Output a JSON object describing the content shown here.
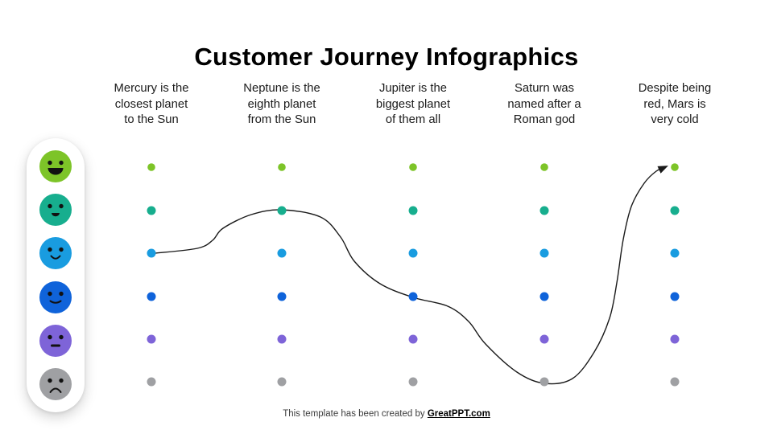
{
  "title": "Customer Journey Infographics",
  "columns": [
    {
      "lines": [
        "Mercury is the",
        "closest planet",
        "to the Sun"
      ]
    },
    {
      "lines": [
        "Neptune is the",
        "eighth planet",
        "from the Sun"
      ]
    },
    {
      "lines": [
        "Jupiter is the",
        "biggest planet",
        "of them all"
      ]
    },
    {
      "lines": [
        "Saturn was",
        "named after a",
        "Roman god"
      ]
    },
    {
      "lines": [
        "Despite being",
        "red, Mars is",
        "very cold"
      ]
    }
  ],
  "moods": [
    {
      "name": "very-happy",
      "mouth": "big-smile",
      "color": "#7DC428"
    },
    {
      "name": "happy",
      "mouth": "small-smile",
      "color": "#17AE8E"
    },
    {
      "name": "content",
      "mouth": "open-smile",
      "color": "#199CE0"
    },
    {
      "name": "okay",
      "mouth": "soft-smile",
      "color": "#0F63DA"
    },
    {
      "name": "neutral",
      "mouth": "flat",
      "color": "#7E64D8"
    },
    {
      "name": "unhappy",
      "mouth": "frown",
      "color": "#9FA0A3"
    }
  ],
  "journey": {
    "line_color": "#1a1a1a",
    "stops": [
      {
        "column": 1,
        "row": 3
      },
      {
        "column": 2,
        "row": 2
      },
      {
        "column": 3,
        "row": 4
      },
      {
        "column": 4,
        "row": 6
      },
      {
        "column": 5,
        "row": 1
      }
    ]
  },
  "footer": {
    "text": "This template has been created by ",
    "link_label": "GreatPPT.com"
  }
}
